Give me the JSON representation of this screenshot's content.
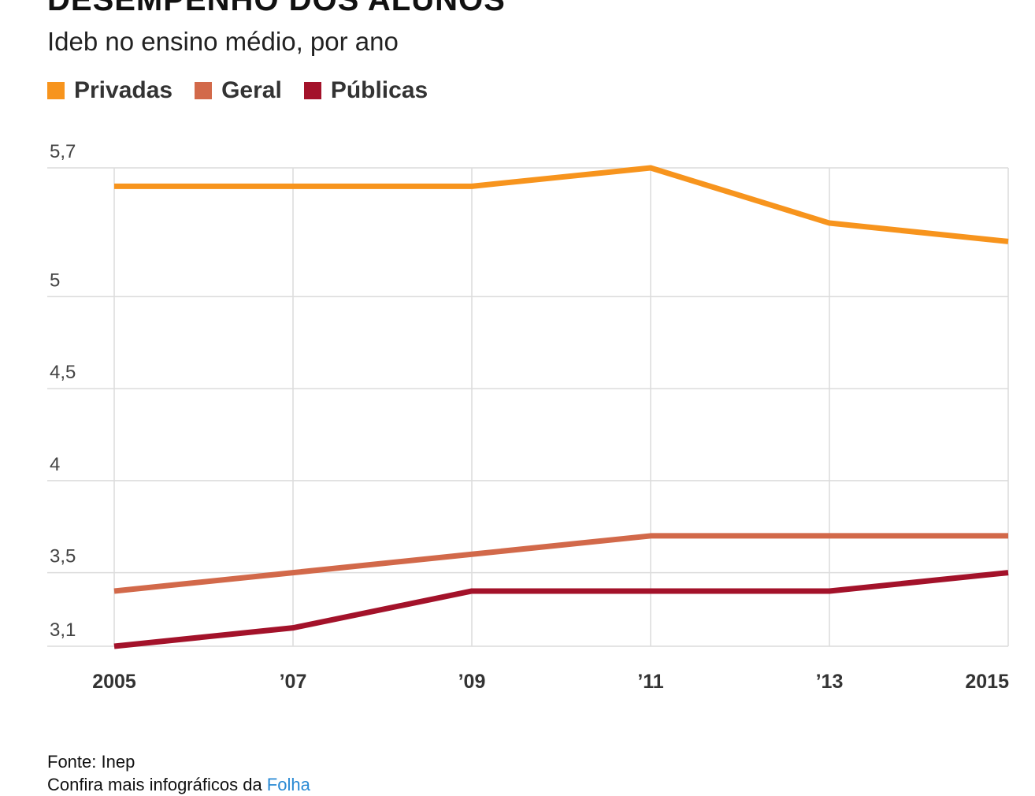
{
  "header": {
    "title": "DESEMPENHO DOS ALUNOS",
    "subtitle": "Ideb no ensino médio, por ano"
  },
  "footer": {
    "source": "Fonte: Inep",
    "more_prefix": "Confira mais infográficos da ",
    "more_link": "Folha"
  },
  "chart_data": {
    "type": "line",
    "x": [
      2005,
      2007,
      2009,
      2011,
      2013,
      2015
    ],
    "x_tick_labels": [
      "2005",
      "’07",
      "’09",
      "’11",
      "’13",
      "2015"
    ],
    "y_ticks": [
      3.1,
      3.5,
      4,
      4.5,
      5,
      5.7
    ],
    "y_tick_labels": [
      "3,1",
      "3,5",
      "4",
      "4,5",
      "5",
      "5,7"
    ],
    "ylim": [
      3.1,
      5.7
    ],
    "grid": true,
    "legend_position": "top-left",
    "series": [
      {
        "name": "Privadas",
        "color": "#f7941d",
        "values": [
          5.6,
          5.6,
          5.6,
          5.7,
          5.4,
          5.3
        ]
      },
      {
        "name": "Geral",
        "color": "#d2694a",
        "values": [
          3.4,
          3.5,
          3.6,
          3.7,
          3.7,
          3.7
        ]
      },
      {
        "name": "Públicas",
        "color": "#a3122a",
        "values": [
          3.1,
          3.2,
          3.4,
          3.4,
          3.4,
          3.5
        ]
      }
    ]
  }
}
